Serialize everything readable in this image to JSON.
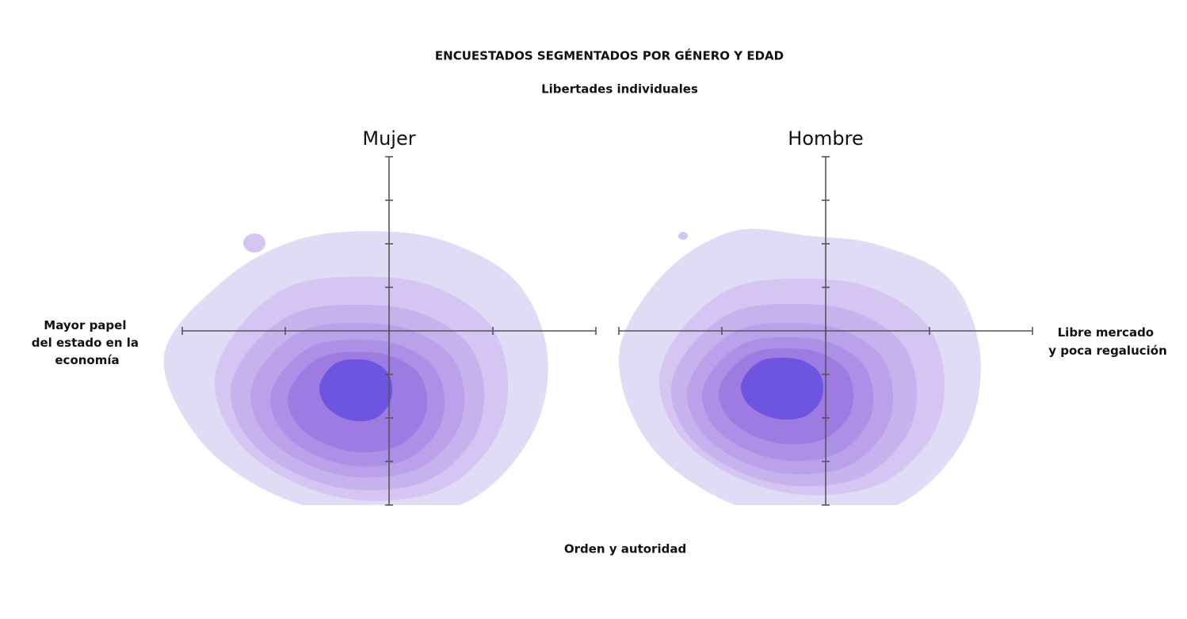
{
  "title": "ENCUESTADOS SEGMENTADOS POR GÉNERO Y EDAD",
  "y_top_label": "Libertades individuales",
  "y_bottom_label": "Orden y autoridad",
  "x_left_label": [
    "Mayor papel",
    "del estado en la",
    "economía"
  ],
  "x_right_label": [
    "Libre mercado",
    "y poca regalución"
  ],
  "chart_data": [
    {
      "type": "density",
      "title": "Mujer",
      "colors": [
        "#e1dcf6",
        "#d4c5f2",
        "#c8b2ee",
        "#bba1ea",
        "#ac8fe6",
        "#9d7be3",
        "#6d55e0"
      ]
    },
    {
      "type": "density",
      "title": "Hombre",
      "colors": [
        "#e1dcf6",
        "#d4c5f2",
        "#c8b2ee",
        "#bba1ea",
        "#ac8fe6",
        "#9d7be3",
        "#6d55e0"
      ]
    }
  ]
}
